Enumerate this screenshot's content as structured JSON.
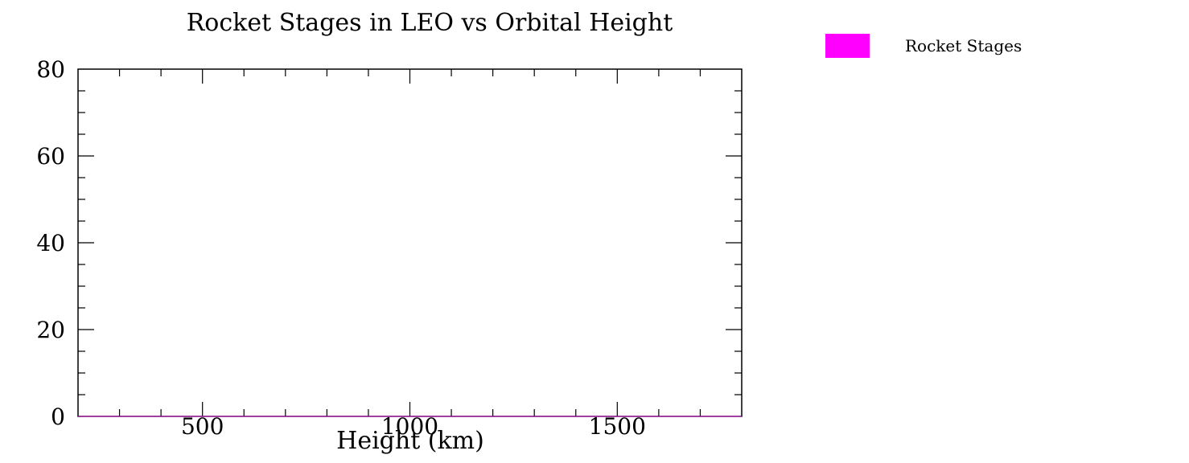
{
  "chart_data": {
    "type": "bar",
    "title": "Rocket Stages in LEO vs Orbital Height",
    "xlabel": "Height (km)",
    "ylabel": "",
    "xlim": [
      200,
      1800
    ],
    "ylim": [
      0,
      80
    ],
    "x_major_ticks": [
      500,
      1000,
      1500
    ],
    "x_minor_step": 100,
    "y_major_ticks": [
      0,
      20,
      40,
      60,
      80
    ],
    "y_minor_step": 5,
    "grid": false,
    "legend_position": "top-right-outside",
    "series": [
      {
        "name": "Rocket Stages",
        "color": "#ff00ff",
        "x": [],
        "values": []
      }
    ]
  }
}
